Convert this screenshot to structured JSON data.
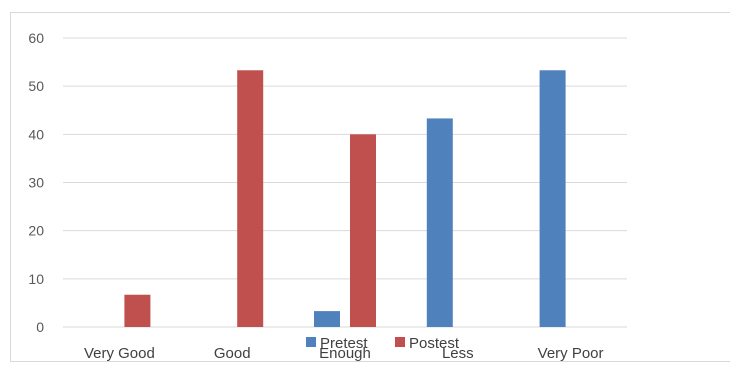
{
  "chart_data": {
    "type": "bar",
    "categories": [
      "Very Good",
      "Good",
      "Enough",
      "Less",
      "Very Poor"
    ],
    "series": [
      {
        "name": "Pretest",
        "color": "#4f81bd",
        "values": [
          0,
          0,
          3.3,
          43.3,
          53.3
        ]
      },
      {
        "name": "Postest",
        "color": "#c0504d",
        "values": [
          6.7,
          53.3,
          40,
          0,
          0
        ]
      }
    ],
    "ylim": [
      0,
      60
    ],
    "yticks": [
      "0",
      "10",
      "20",
      "30",
      "40",
      "50",
      "60"
    ],
    "grid": true,
    "legend_position": "bottom"
  }
}
